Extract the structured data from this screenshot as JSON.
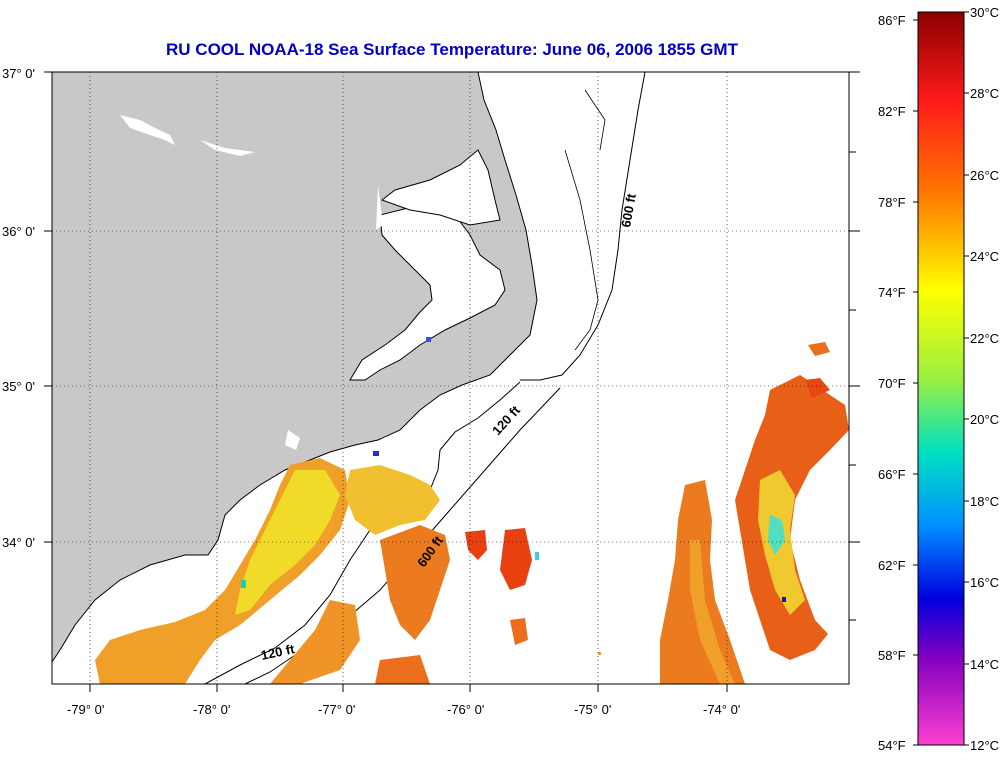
{
  "title": "RU COOL  NOAA-18  Sea Surface Temperature:  June 06, 2006 1855 GMT",
  "lat_labels": [
    "37° 0'",
    "36° 0'",
    "35° 0'",
    "34° 0'"
  ],
  "lon_labels": [
    "-79° 0'",
    "-78° 0'",
    "-77° 0'",
    "-76° 0'",
    "-75° 0'",
    "-74° 0'"
  ],
  "isobaths": [
    {
      "label": "600 ft",
      "id": "north"
    },
    {
      "label": "120 ft",
      "id": "mid"
    },
    {
      "label": "600 ft",
      "id": "south"
    },
    {
      "label": "120 ft",
      "id": "southwest"
    }
  ],
  "colorbar": {
    "fahrenheit_labels": [
      "86°F",
      "82°F",
      "78°F",
      "74°F",
      "70°F",
      "66°F",
      "62°F",
      "58°F",
      "54°F"
    ],
    "celsius_labels": [
      "30°C",
      "28°C",
      "26°C",
      "24°C",
      "22°C",
      "20°C",
      "18°C",
      "16°C",
      "14°C",
      "12°C"
    ]
  },
  "colors": {
    "title": "#0000c8",
    "land": "#c8c8c8",
    "sst_orange": "#f08c20",
    "sst_yellow": "#f0e028",
    "sst_red": "#e83c14"
  }
}
